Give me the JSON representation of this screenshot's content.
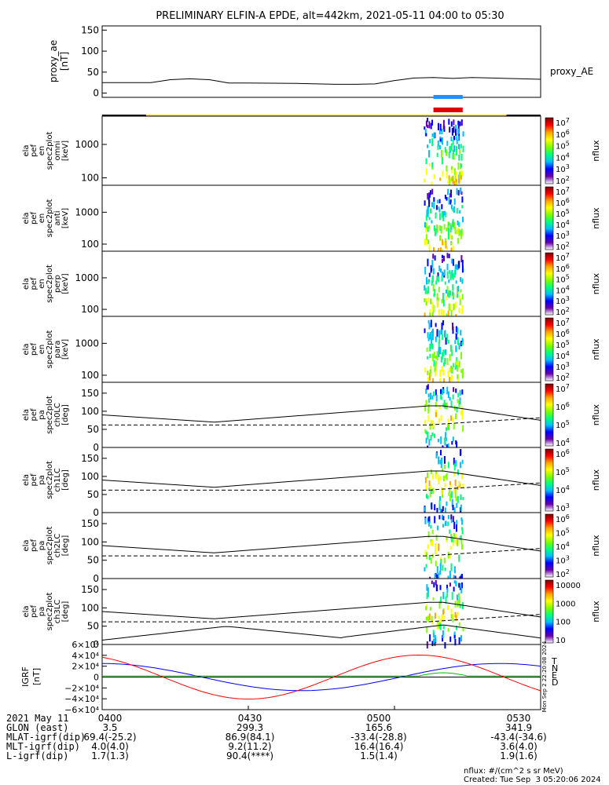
{
  "chart_data": {
    "type": "spectrogram",
    "title": "PRELIMINARY ELFIN-A EPDE, alt=442km, 2021-05-11 04:00 to 05:30",
    "time_axis": {
      "start": "2021-05-11 04:00",
      "end": "2021-05-11 05:30",
      "tick_labels": [
        "0400",
        "0430",
        "0500",
        "0530"
      ]
    },
    "panels": [
      {
        "id": "proxy_ae",
        "ylabel": [
          "proxy_ae",
          "[nT]"
        ],
        "yticks": [
          "150",
          "100",
          "50",
          "0"
        ],
        "ylim": [
          -10,
          160
        ],
        "series_label": "proxy_AE",
        "series": {
          "name": "proxy_AE",
          "t": [
            "04:00",
            "04:10",
            "04:14",
            "04:18",
            "04:22",
            "04:26",
            "04:30",
            "04:40",
            "04:48",
            "04:52",
            "04:56",
            "05:00",
            "05:04",
            "05:08",
            "05:12",
            "05:16",
            "05:20",
            "05:30"
          ],
          "y": [
            25,
            25,
            32,
            34,
            32,
            24,
            24,
            23,
            21,
            21,
            22,
            30,
            36,
            37,
            35,
            37,
            36,
            33
          ]
        }
      },
      {
        "id": "omni",
        "ylabel": [
          "ela",
          "pef",
          "en",
          "spec2plot",
          "omni",
          "[keV]"
        ],
        "yticks": [
          "1000",
          "100"
        ],
        "log": true,
        "ylim": [
          60,
          7000
        ],
        "colorbar": {
          "label": "nflux",
          "ticks": [
            "10^7",
            "10^6",
            "10^5",
            "10^4",
            "10^3",
            "10^2"
          ]
        }
      },
      {
        "id": "anti",
        "ylabel": [
          "ela",
          "pef",
          "en",
          "spec2plot",
          "anti",
          "[keV]"
        ],
        "yticks": [
          "1000",
          "100"
        ],
        "log": true,
        "ylim": [
          60,
          7000
        ],
        "colorbar": {
          "label": "nflux",
          "ticks": [
            "10^7",
            "10^6",
            "10^5",
            "10^4",
            "10^3",
            "10^2"
          ]
        }
      },
      {
        "id": "perp",
        "ylabel": [
          "ela",
          "pef",
          "en",
          "spec2plot",
          "perp",
          "[keV]"
        ],
        "yticks": [
          "1000",
          "100"
        ],
        "log": true,
        "ylim": [
          60,
          7000
        ],
        "colorbar": {
          "label": "nflux",
          "ticks": [
            "10^7",
            "10^6",
            "10^5",
            "10^4",
            "10^3",
            "10^2"
          ]
        }
      },
      {
        "id": "para",
        "ylabel": [
          "ela",
          "pef",
          "en",
          "spec2plot",
          "para",
          "[keV]"
        ],
        "yticks": [
          "1000",
          "100"
        ],
        "log": true,
        "ylim": [
          60,
          7000
        ],
        "colorbar": {
          "label": "nflux",
          "ticks": [
            "10^7",
            "10^6",
            "10^5",
            "10^4",
            "10^3",
            "10^2"
          ]
        }
      },
      {
        "id": "ch0LC",
        "ylabel": [
          "ela",
          "pef",
          "pa",
          "spec2plot",
          "ch0LC",
          "[deg]"
        ],
        "yticks": [
          "150",
          "100",
          "50",
          "0"
        ],
        "ylim": [
          0,
          180
        ],
        "colorbar": {
          "label": "nflux",
          "ticks": [
            "10^7",
            "10^6",
            "10^5",
            "10^4"
          ]
        }
      },
      {
        "id": "ch1LC",
        "ylabel": [
          "ela",
          "pef",
          "pa",
          "spec2plot",
          "ch1LC",
          "[deg]"
        ],
        "yticks": [
          "150",
          "100",
          "50",
          "0"
        ],
        "ylim": [
          0,
          180
        ],
        "colorbar": {
          "label": "nflux",
          "ticks": [
            "10^6",
            "10^5",
            "10^4",
            "10^3"
          ]
        }
      },
      {
        "id": "ch2LC",
        "ylabel": [
          "ela",
          "pef",
          "pa",
          "spec2plot",
          "ch2LC",
          "[deg]"
        ],
        "yticks": [
          "150",
          "100",
          "50",
          "0"
        ],
        "ylim": [
          0,
          180
        ],
        "colorbar": {
          "label": "nflux",
          "ticks": [
            "10^6",
            "10^5",
            "10^4",
            "10^3",
            "10^2"
          ]
        }
      },
      {
        "id": "ch3LC",
        "ylabel": [
          "ela",
          "pef",
          "pa",
          "spec2plot",
          "ch3LC",
          "[deg]"
        ],
        "yticks": [
          "150",
          "100",
          "50",
          "0"
        ],
        "ylim": [
          0,
          180
        ],
        "colorbar": {
          "label": "nflux",
          "ticks": [
            "10000",
            "1000",
            "100",
            "10"
          ]
        }
      },
      {
        "id": "IGRF",
        "ylabel": [
          "IGRF",
          "[nT]"
        ],
        "yticks": [
          "6×10⁴",
          "4×10⁴",
          "2×10⁴",
          "0",
          "−2×10⁴",
          "−4×10⁴",
          "−6×10⁴"
        ],
        "ylim": [
          -60000,
          60000
        ],
        "legend": [
          "T",
          "N",
          "E",
          "D"
        ],
        "side_label": "Mon Sep  2 22:20:08 2024",
        "series": [
          {
            "name": "T",
            "color": "#000000"
          },
          {
            "name": "N",
            "color": "#0000ff"
          },
          {
            "name": "E",
            "color": "#00c000"
          },
          {
            "name": "D",
            "color": "#ff0000"
          }
        ]
      }
    ],
    "loss_cone_lines": {
      "t": [
        "04:00",
        "04:23",
        "05:07",
        "05:10",
        "05:30"
      ],
      "solid_deg": [
        90,
        70,
        115,
        115,
        75
      ],
      "dashed_deg": [
        62,
        62,
        62,
        65,
        82
      ]
    },
    "status_bar": {
      "colors": {
        "black": "#000000",
        "yellow": "#ffd800"
      },
      "yellow_from": "04:09",
      "yellow_to": "05:23"
    },
    "markers": {
      "blue": "#1e90ff",
      "red": "#e00000"
    },
    "colormap_stops": [
      "#ffffff",
      "#6a00a8",
      "#0000ff",
      "#00bfff",
      "#00ff7f",
      "#7fff00",
      "#ffff00",
      "#ffa500",
      "#ff0000",
      "#800000"
    ]
  },
  "ephemeris": {
    "rows": [
      {
        "label": "2021 May 11",
        "values": [
          "0400",
          "0430",
          "0500",
          "0530"
        ]
      },
      {
        "label": "GLON (east)",
        "values": [
          "3.5",
          "299.3",
          "165.6",
          "341.9"
        ]
      },
      {
        "label": "MLAT-igrf(dip)",
        "values": [
          "69.4(-25.2)",
          "86.9(84.1)",
          "-33.4(-28.8)",
          "-43.4(-34.6)"
        ]
      },
      {
        "label": "MLT-igrf(dip)",
        "values": [
          "4.0(4.0)",
          "9.2(11.2)",
          "16.4(16.4)",
          "3.6(4.0)"
        ]
      },
      {
        "label": "L-igrf(dip)",
        "values": [
          "1.7(1.3)",
          "90.4(****)",
          "1.5(1.4)",
          "1.9(1.6)"
        ]
      }
    ]
  },
  "footer": {
    "units": "nflux: #/(cm^2 s sr MeV)",
    "created": "Created: Tue Sep  3 05:20:06 2024"
  }
}
